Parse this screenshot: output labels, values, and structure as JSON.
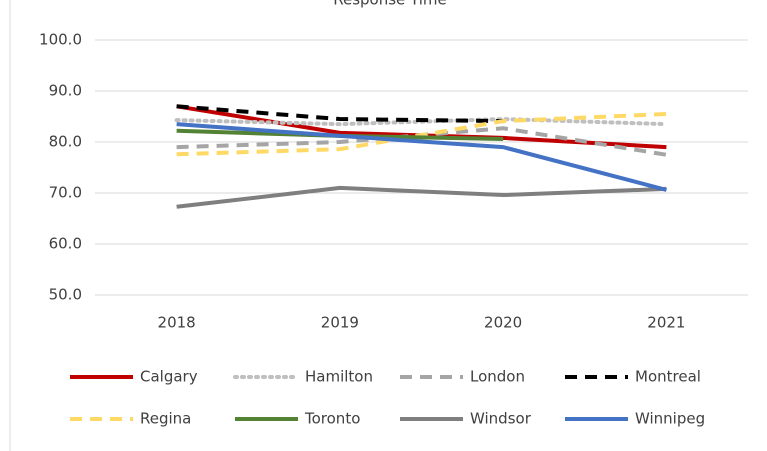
{
  "chart_data": {
    "type": "line",
    "title": "Response Time",
    "categories": [
      "2018",
      "2019",
      "2020",
      "2021"
    ],
    "ylim": [
      50,
      100
    ],
    "yticks": [
      {
        "value": 50,
        "label": "50.0"
      },
      {
        "value": 60,
        "label": "60.0"
      },
      {
        "value": 70,
        "label": "70.0"
      },
      {
        "value": 80,
        "label": "80.0"
      },
      {
        "value": 90,
        "label": "90.0"
      },
      {
        "value": 100,
        "label": "100.0"
      }
    ],
    "grid": true,
    "legend": "bottom",
    "series": [
      {
        "name": "Calgary",
        "color": "#c00000",
        "dash": "solid",
        "values": [
          87.0,
          81.8,
          80.8,
          79.0
        ]
      },
      {
        "name": "Hamilton",
        "color": "#bfbfbf",
        "dash": "dot",
        "values": [
          84.3,
          83.5,
          84.5,
          83.5
        ]
      },
      {
        "name": "London",
        "color": "#a5a5a5",
        "dash": "dash",
        "values": [
          79.0,
          80.0,
          82.7,
          77.5
        ]
      },
      {
        "name": "Montreal",
        "color": "#000000",
        "dash": "dash",
        "values": [
          87.0,
          84.5,
          84.1,
          null
        ]
      },
      {
        "name": "Regina",
        "color": "#ffd966",
        "dash": "dash",
        "values": [
          77.6,
          78.6,
          84.1,
          85.5
        ]
      },
      {
        "name": "Toronto",
        "color": "#548235",
        "dash": "solid",
        "values": [
          82.2,
          81.2,
          80.6,
          null
        ]
      },
      {
        "name": "Windsor",
        "color": "#7f7f7f",
        "dash": "solid",
        "values": [
          67.3,
          71.0,
          69.6,
          70.8
        ]
      },
      {
        "name": "Winnipeg",
        "color": "#4472c4",
        "dash": "solid",
        "values": [
          83.5,
          81.2,
          79.0,
          70.6
        ]
      }
    ]
  }
}
